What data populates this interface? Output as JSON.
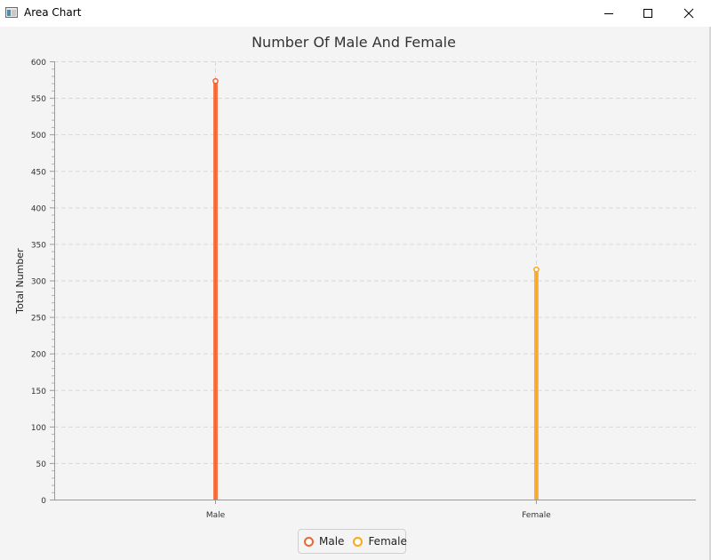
{
  "window": {
    "title": "Area Chart"
  },
  "chart_data": {
    "type": "area",
    "title": "Number Of Male And Female",
    "xlabel": "",
    "ylabel": "Total Number",
    "categories": [
      "Male",
      "Female"
    ],
    "series": [
      {
        "name": "Male",
        "category": "Male",
        "value": 573,
        "color": "#f3622d"
      },
      {
        "name": "Female",
        "category": "Female",
        "value": 315,
        "color": "#fba71b"
      }
    ],
    "ylim": [
      0,
      600
    ],
    "yticks": [
      0,
      50,
      100,
      150,
      200,
      250,
      300,
      350,
      400,
      450,
      500,
      550,
      600
    ],
    "grid": true,
    "legend": "bottom-center"
  }
}
